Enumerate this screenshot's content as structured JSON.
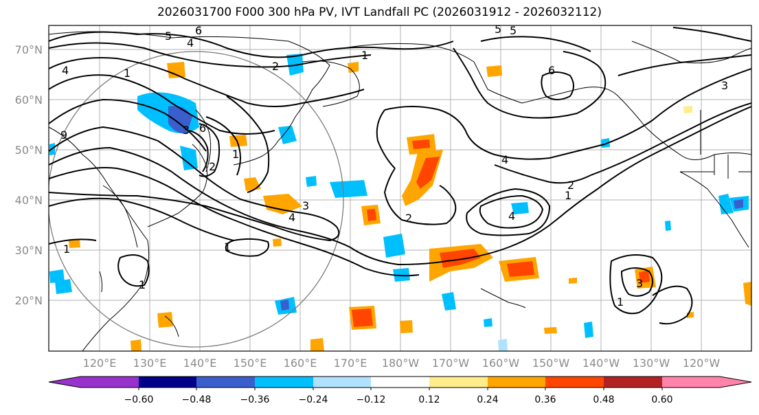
{
  "title": "2026031700 F000 300 hPa PV, IVT Landfall PC (2026031912 - 2026032112)",
  "map": {
    "lat_labels": [
      "70°N",
      "60°N",
      "50°N",
      "40°N",
      "30°N",
      "20°N"
    ],
    "lon_labels": [
      "120°E",
      "130°E",
      "140°E",
      "150°E",
      "160°E",
      "170°E",
      "180°W",
      "170°W",
      "160°W",
      "150°W",
      "140°W",
      "130°W",
      "120°W"
    ]
  },
  "colorbar": {
    "ticks": [
      "−0.60",
      "−0.48",
      "−0.36",
      "−0.24",
      "−0.12",
      "0.12",
      "0.24",
      "0.36",
      "0.48",
      "0.60"
    ],
    "colors": [
      "#9932cc",
      "#00008b",
      "#3a5fcd",
      "#00bfff",
      "#b0e2ff",
      "#ffffff",
      "#ffec8b",
      "#ffa500",
      "#ff4500",
      "#b22222",
      "#ff83ab"
    ]
  },
  "contour_labels": [
    "5",
    "6",
    "4",
    "4",
    "1",
    "2",
    "1",
    "1",
    "9",
    "6",
    "3",
    "2",
    "1",
    "4",
    "3",
    "2",
    "4",
    "4",
    "1",
    "2",
    "1",
    "5",
    "6",
    "5",
    "3",
    "1",
    "1",
    "3"
  ]
}
